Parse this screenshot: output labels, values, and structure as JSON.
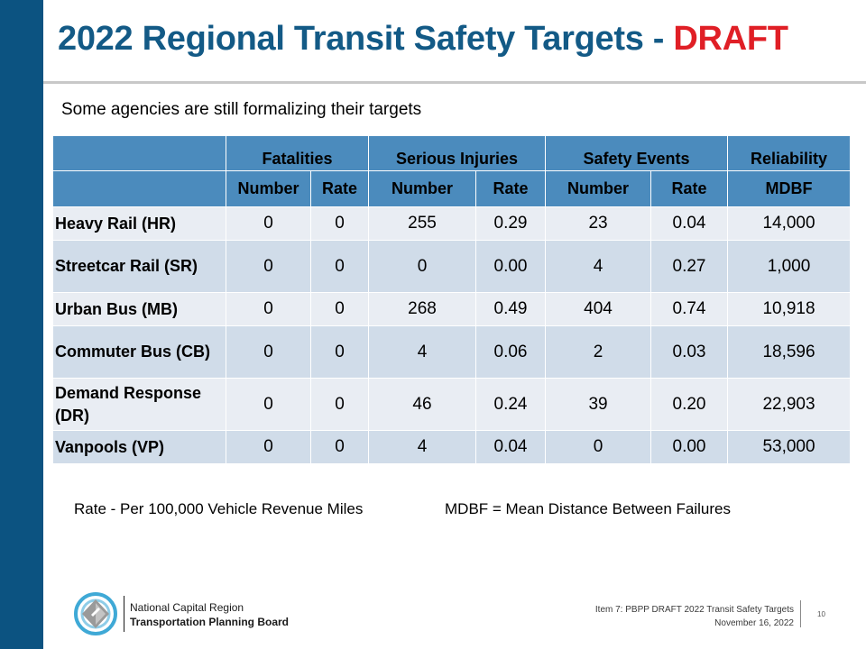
{
  "slide": {
    "title_main": "2022 Regional Transit Safety Targets - ",
    "title_draft": "DRAFT",
    "subtitle": "Some agencies are still formalizing their targets"
  },
  "table": {
    "group_headers": [
      "Fatalities",
      "Serious Injuries",
      "Safety Events",
      "Reliability"
    ],
    "sub_headers": [
      "Number",
      "Rate",
      "Number",
      "Rate",
      "Number",
      "Rate",
      "MDBF"
    ],
    "rows": [
      {
        "mode": "Heavy Rail (HR)",
        "values": [
          "0",
          "0",
          "255",
          "0.29",
          "23",
          "0.04",
          "14,000"
        ]
      },
      {
        "mode": "Streetcar Rail (SR)",
        "values": [
          "0",
          "0",
          "0",
          "0.00",
          "4",
          "0.27",
          "1,000"
        ]
      },
      {
        "mode": "Urban Bus (MB)",
        "values": [
          "0",
          "0",
          "268",
          "0.49",
          "404",
          "0.74",
          "10,918"
        ]
      },
      {
        "mode": "Commuter Bus (CB)",
        "values": [
          "0",
          "0",
          "4",
          "0.06",
          "2",
          "0.03",
          "18,596"
        ]
      },
      {
        "mode": "Demand Response (DR)",
        "values": [
          "0",
          "0",
          "46",
          "0.24",
          "39",
          "0.20",
          "22,903"
        ]
      },
      {
        "mode": "Vanpools (VP)",
        "values": [
          "0",
          "0",
          "4",
          "0.04",
          "0",
          "0.00",
          "53,000"
        ]
      }
    ]
  },
  "footnotes": {
    "rate": "Rate - Per 100,000 Vehicle Revenue Miles",
    "mdbf": "MDBF = Mean Distance Between Failures"
  },
  "footer": {
    "org_line1": "National Capital Region",
    "org_line2": "Transportation Planning Board",
    "item_line1": "Item 7: PBPP DRAFT 2022 Transit Safety Targets",
    "item_line2": "November 16, 2022",
    "page_number": "10"
  },
  "colors": {
    "sidebar": "#0c5381",
    "title": "#135a86",
    "draft": "#e01f26",
    "header_fill": "#4b8bbd",
    "row_light": "#e9edf3",
    "row_dark": "#d0dce9"
  }
}
